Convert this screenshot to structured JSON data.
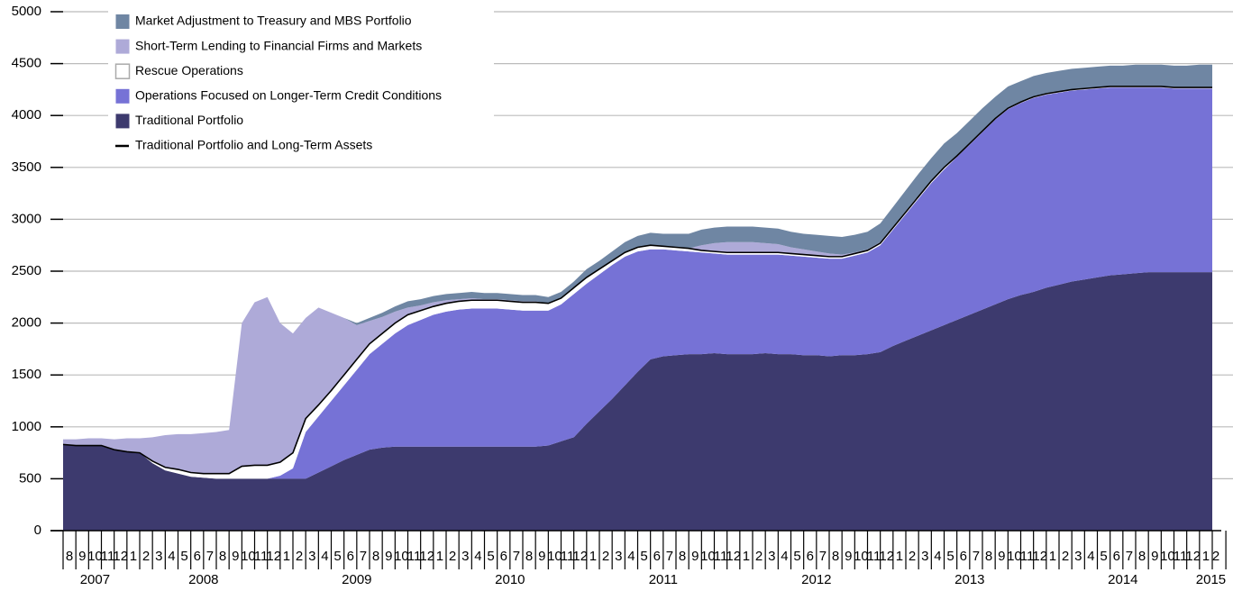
{
  "chart_data": {
    "type": "area",
    "stacked": true,
    "grid": true,
    "legend": "top-left",
    "ylim": [
      0,
      5000
    ],
    "yticks": [
      0,
      500,
      1000,
      1500,
      2000,
      2500,
      3000,
      3500,
      4000,
      4500,
      5000
    ],
    "categories": [
      "8",
      "9",
      "10",
      "11",
      "12",
      "1",
      "2",
      "3",
      "4",
      "5",
      "6",
      "7",
      "8",
      "9",
      "10",
      "11",
      "12",
      "1",
      "2",
      "3",
      "4",
      "5",
      "6",
      "7",
      "8",
      "9",
      "10",
      "11",
      "12",
      "1",
      "2",
      "3",
      "4",
      "5",
      "6",
      "7",
      "8",
      "9",
      "10",
      "11",
      "12",
      "1",
      "2",
      "3",
      "4",
      "5",
      "6",
      "7",
      "8",
      "9",
      "10",
      "11",
      "12",
      "1",
      "2",
      "3",
      "4",
      "5",
      "6",
      "7",
      "8",
      "9",
      "10",
      "11",
      "12",
      "1",
      "2",
      "3",
      "4",
      "5",
      "6",
      "7",
      "8",
      "9",
      "10",
      "11",
      "12",
      "1",
      "2",
      "3",
      "4",
      "5",
      "6",
      "7",
      "8",
      "9",
      "10",
      "11",
      "12",
      "1",
      "2"
    ],
    "years": [
      "2007",
      "2008",
      "2009",
      "2010",
      "2011",
      "2012",
      "2013",
      "2014",
      "2015"
    ],
    "series": [
      {
        "name": "Market Adjustment to Treasury and MBS Portfolio",
        "color": "#6f86a3",
        "values": [
          0,
          0,
          0,
          0,
          0,
          0,
          0,
          0,
          0,
          0,
          0,
          0,
          0,
          0,
          0,
          0,
          0,
          0,
          0,
          0,
          0,
          0,
          0,
          20,
          30,
          40,
          50,
          60,
          60,
          60,
          60,
          60,
          60,
          60,
          60,
          60,
          60,
          60,
          60,
          60,
          60,
          80,
          80,
          90,
          100,
          110,
          120,
          120,
          130,
          140,
          150,
          150,
          150,
          150,
          150,
          150,
          150,
          150,
          150,
          160,
          170,
          170,
          170,
          170,
          180,
          190,
          200,
          210,
          220,
          230,
          220,
          220,
          220,
          210,
          210,
          200,
          200,
          200,
          200,
          200,
          200,
          200,
          200,
          200,
          210,
          210,
          210,
          210,
          210,
          220,
          220
        ]
      },
      {
        "name": "Short-Term Lending to Financial Firms and Markets",
        "color": "#aeaad8",
        "values": [
          50,
          60,
          70,
          70,
          100,
          130,
          140,
          230,
          310,
          340,
          370,
          390,
          400,
          420,
          1380,
          1570,
          1620,
          1340,
          1150,
          970,
          940,
          750,
          550,
          330,
          220,
          160,
          110,
          70,
          50,
          40,
          30,
          20,
          20,
          10,
          10,
          10,
          10,
          10,
          0,
          0,
          0,
          0,
          0,
          0,
          0,
          0,
          0,
          0,
          0,
          0,
          50,
          80,
          100,
          100,
          100,
          90,
          80,
          60,
          50,
          40,
          30,
          20,
          10,
          10,
          10,
          10,
          10,
          10,
          0,
          0,
          0,
          0,
          0,
          0,
          0,
          0,
          0,
          0,
          0,
          0,
          0,
          0,
          0,
          0,
          0,
          0,
          0,
          0,
          0,
          0,
          0
        ]
      },
      {
        "name": "Rescue Operations",
        "color": "#ffffff",
        "values": [
          0,
          0,
          0,
          0,
          0,
          0,
          0,
          20,
          30,
          40,
          40,
          40,
          50,
          50,
          120,
          130,
          130,
          130,
          150,
          130,
          110,
          100,
          100,
          100,
          100,
          100,
          100,
          100,
          90,
          80,
          80,
          80,
          80,
          80,
          80,
          80,
          80,
          80,
          70,
          60,
          60,
          60,
          50,
          40,
          40,
          40,
          40,
          30,
          30,
          30,
          20,
          20,
          20,
          20,
          20,
          20,
          20,
          20,
          20,
          20,
          20,
          20,
          20,
          20,
          20,
          20,
          20,
          20,
          20,
          20,
          10,
          10,
          10,
          10,
          10,
          10,
          10,
          10,
          10,
          10,
          10,
          10,
          10,
          10,
          10,
          10,
          10,
          10,
          10,
          10,
          10
        ]
      },
      {
        "name": "Operations Focused on Longer-Term Credit Conditions",
        "color": "#7672d6",
        "values": [
          0,
          0,
          0,
          0,
          0,
          0,
          0,
          0,
          0,
          0,
          0,
          0,
          0,
          0,
          0,
          0,
          0,
          30,
          100,
          450,
          540,
          630,
          720,
          820,
          920,
          1000,
          1090,
          1170,
          1220,
          1270,
          1300,
          1320,
          1330,
          1330,
          1330,
          1320,
          1310,
          1310,
          1300,
          1320,
          1380,
          1350,
          1320,
          1290,
          1240,
          1160,
          1060,
          1030,
          1010,
          990,
          980,
          960,
          960,
          960,
          960,
          950,
          960,
          950,
          950,
          940,
          940,
          930,
          960,
          980,
          1030,
          1120,
          1220,
          1320,
          1420,
          1500,
          1570,
          1640,
          1710,
          1780,
          1830,
          1850,
          1870,
          1860,
          1850,
          1840,
          1830,
          1820,
          1810,
          1800,
          1790,
          1780,
          1780,
          1770,
          1770,
          1770,
          1770
        ]
      },
      {
        "name": "Traditional Portfolio",
        "color": "#3d3a6e",
        "values": [
          830,
          820,
          820,
          820,
          780,
          760,
          750,
          650,
          580,
          550,
          520,
          510,
          500,
          500,
          500,
          500,
          500,
          500,
          500,
          500,
          560,
          620,
          680,
          730,
          780,
          800,
          810,
          810,
          810,
          810,
          810,
          810,
          810,
          810,
          810,
          810,
          810,
          810,
          820,
          860,
          900,
          1030,
          1150,
          1270,
          1400,
          1530,
          1650,
          1680,
          1690,
          1700,
          1700,
          1710,
          1700,
          1700,
          1700,
          1710,
          1700,
          1700,
          1690,
          1690,
          1680,
          1690,
          1690,
          1700,
          1720,
          1780,
          1830,
          1880,
          1930,
          1980,
          2030,
          2080,
          2130,
          2180,
          2230,
          2270,
          2300,
          2340,
          2370,
          2400,
          2420,
          2440,
          2460,
          2470,
          2480,
          2490,
          2490,
          2490,
          2490,
          2490,
          2490
        ]
      },
      {
        "name": "Traditional Portfolio and Long-Term Assets",
        "type": "line",
        "color": "#000000",
        "values": [
          830,
          820,
          820,
          820,
          780,
          760,
          750,
          670,
          610,
          590,
          560,
          550,
          550,
          550,
          620,
          630,
          630,
          660,
          750,
          1080,
          1210,
          1350,
          1500,
          1650,
          1800,
          1900,
          2000,
          2080,
          2120,
          2160,
          2190,
          2210,
          2220,
          2220,
          2220,
          2210,
          2200,
          2200,
          2190,
          2240,
          2340,
          2440,
          2520,
          2600,
          2680,
          2730,
          2750,
          2740,
          2730,
          2720,
          2700,
          2690,
          2680,
          2680,
          2680,
          2680,
          2680,
          2670,
          2660,
          2650,
          2640,
          2640,
          2670,
          2700,
          2770,
          2920,
          3070,
          3220,
          3370,
          3500,
          3610,
          3730,
          3850,
          3970,
          4070,
          4130,
          4180,
          4210,
          4230,
          4250,
          4260,
          4270,
          4280,
          4280,
          4280,
          4280,
          4280,
          4270,
          4270,
          4270,
          4270
        ]
      }
    ]
  }
}
